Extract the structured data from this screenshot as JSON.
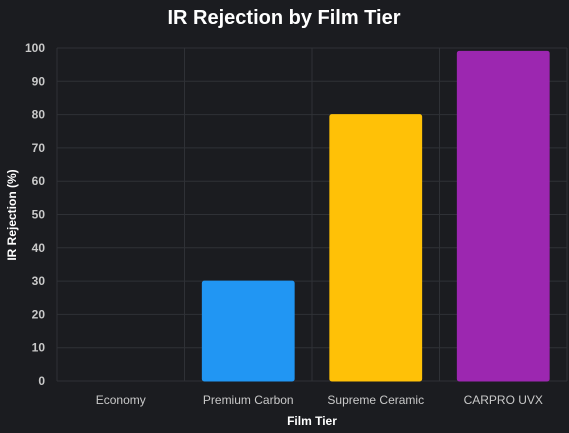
{
  "chart_data": {
    "type": "bar",
    "title": "IR Rejection by Film Tier",
    "xlabel": "Film Tier",
    "ylabel": "IR Rejection (%)",
    "categories": [
      "Economy",
      "Premium Carbon",
      "Supreme Ceramic",
      "CARPRO UVX"
    ],
    "values": [
      0,
      30,
      80,
      99
    ],
    "bar_colors": [
      "#9e9e9e",
      "#2196f3",
      "#ffc107",
      "#9c27b0"
    ],
    "ylim": [
      0,
      100
    ],
    "yticks": [
      0,
      10,
      20,
      30,
      40,
      50,
      60,
      70,
      80,
      90,
      100
    ],
    "grid": true,
    "legend": "none"
  },
  "colors": {
    "background": "#1b1c20",
    "grid": "#2f3136",
    "title": "#ffffff",
    "tick_text": "#c9c9c9"
  }
}
